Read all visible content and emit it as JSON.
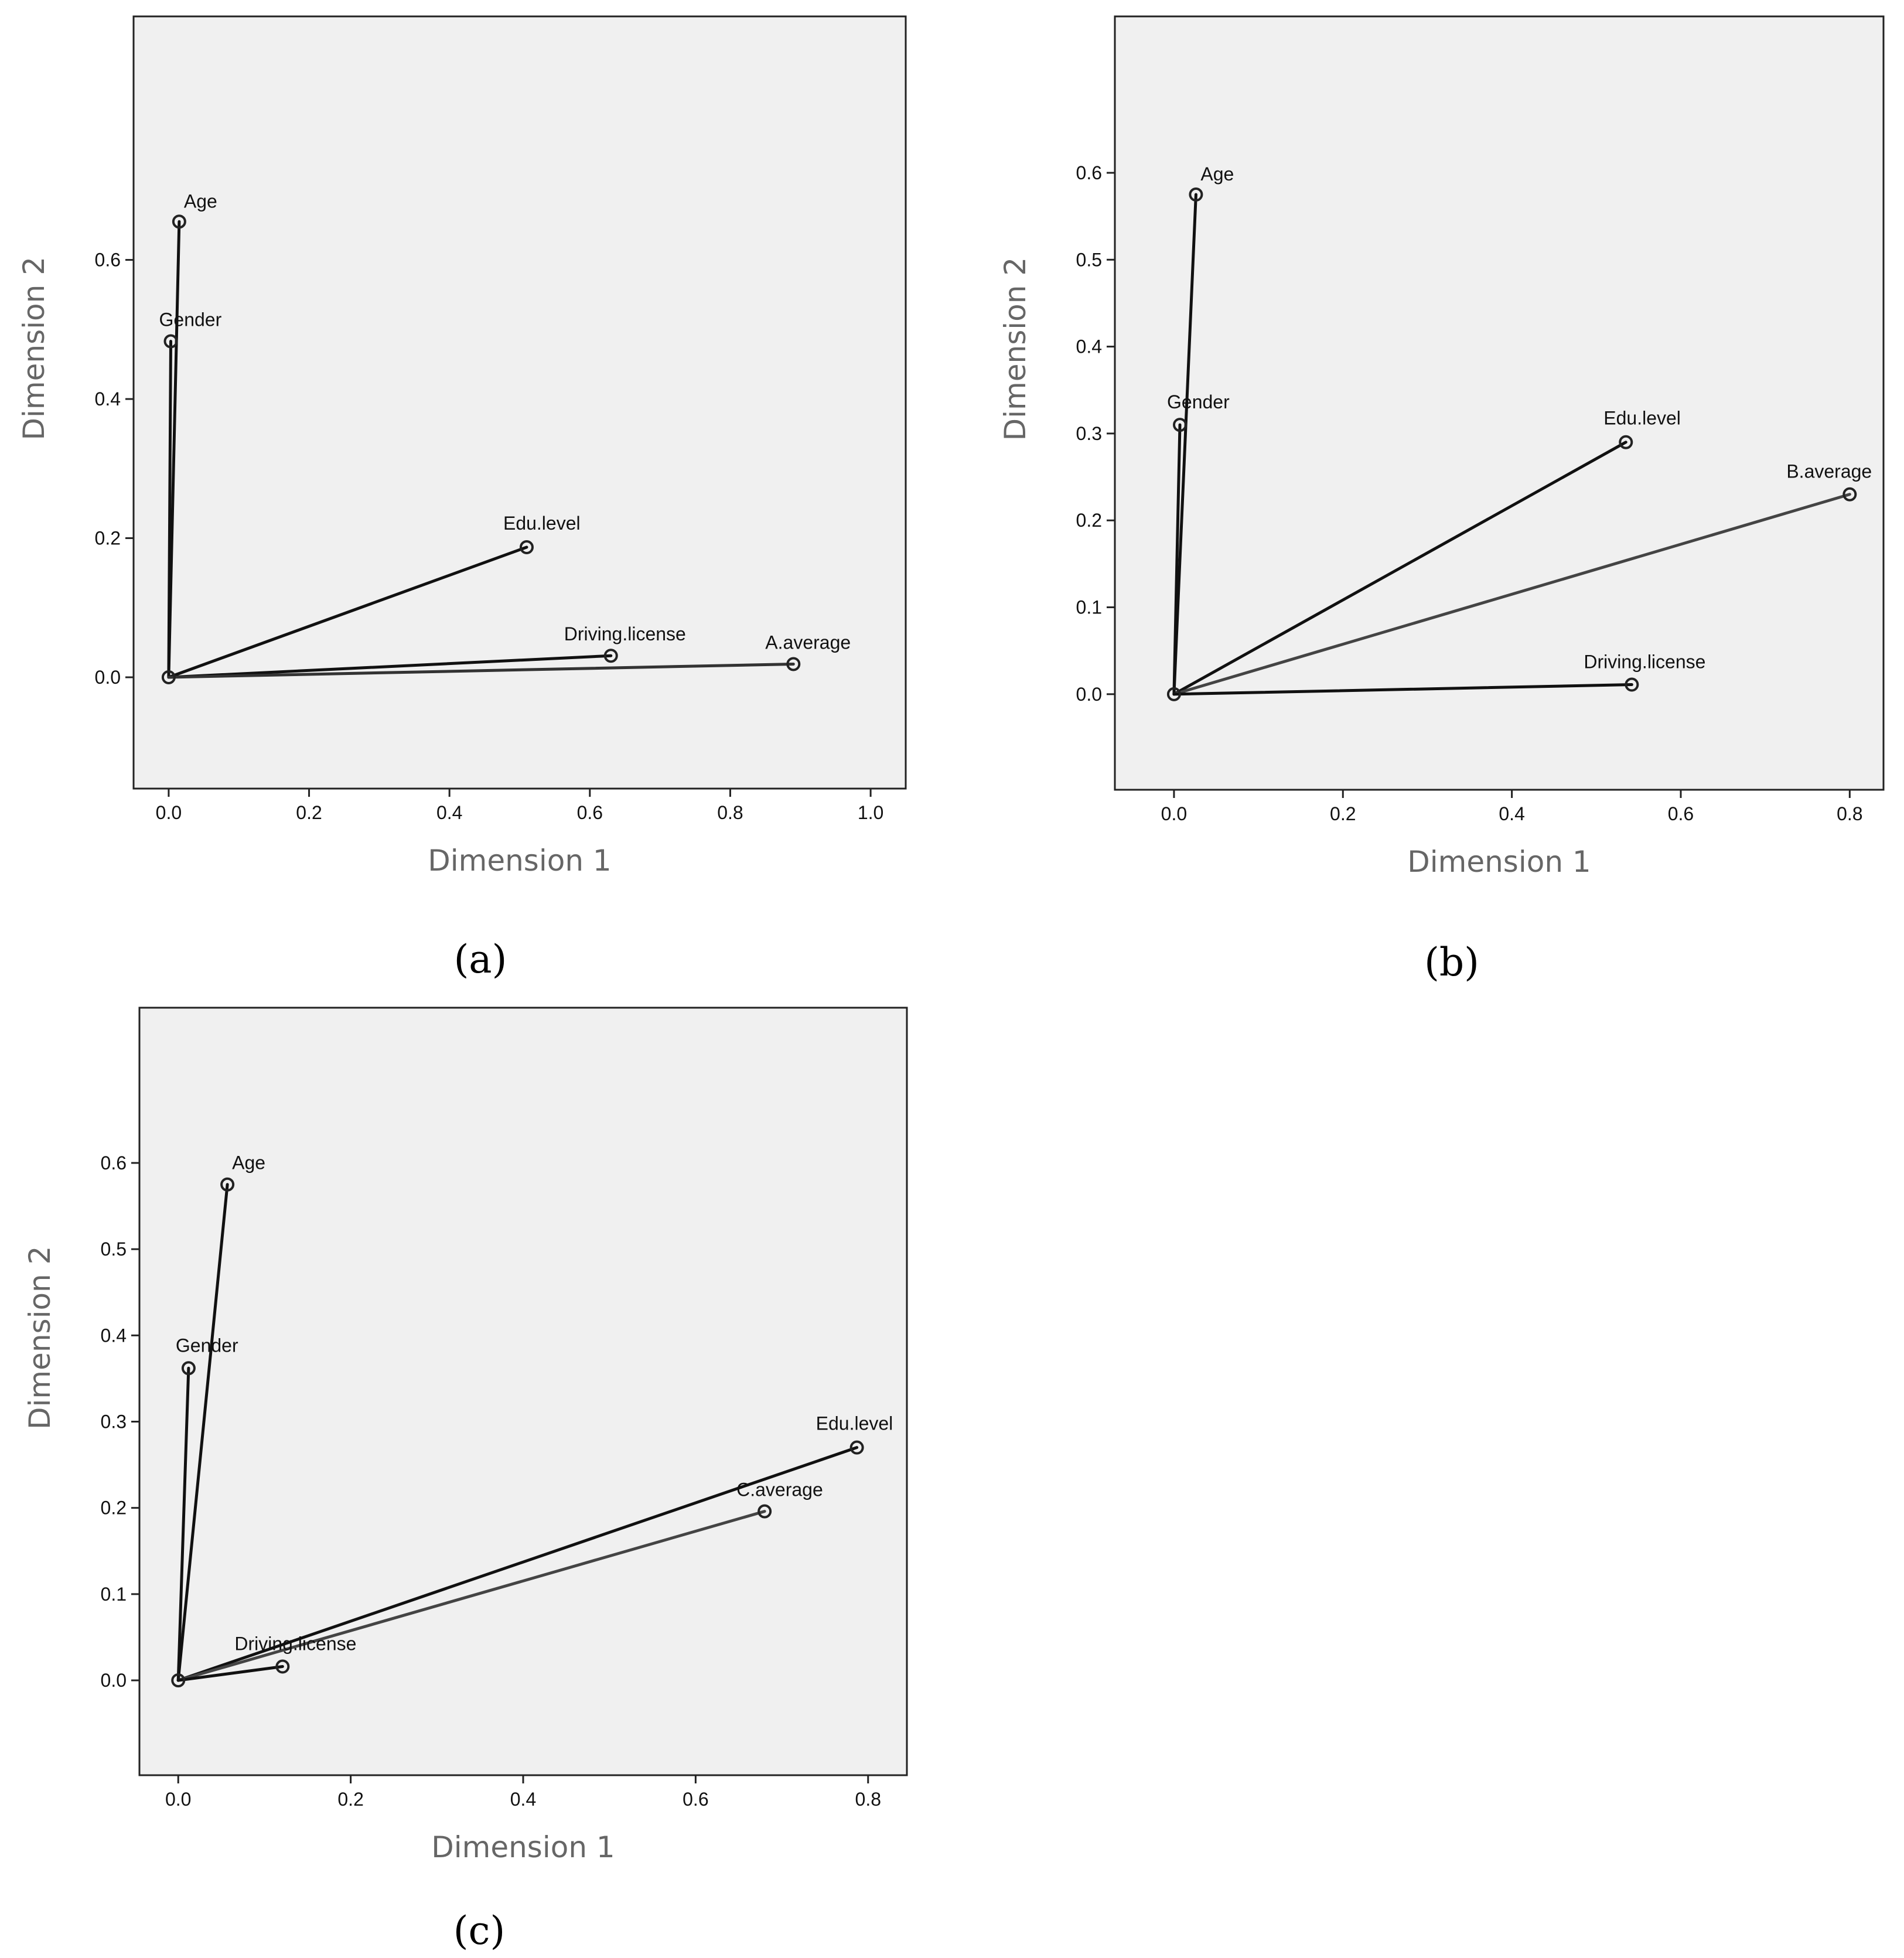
{
  "chart_data": [
    {
      "type": "scatter",
      "caption": "(a)",
      "xlabel": "Dimension 1",
      "ylabel": "Dimension 2",
      "xlim": [
        -0.05,
        1.05
      ],
      "ylim": [
        -0.16,
        0.95
      ],
      "xticks": [
        "0.0",
        "0.2",
        "0.4",
        "0.6",
        "0.8",
        "1.0"
      ],
      "yticks": [
        "0.0",
        "0.2",
        "0.4",
        "0.6"
      ],
      "grid": false,
      "legend": "none",
      "origin": [
        0,
        0
      ],
      "points": [
        {
          "label": "Age",
          "x": 0.015,
          "y": 0.655
        },
        {
          "label": "Gender",
          "x": 0.003,
          "y": 0.483
        },
        {
          "label": "Edu.level",
          "x": 0.51,
          "y": 0.187
        },
        {
          "label": "Driving.license",
          "x": 0.63,
          "y": 0.031
        },
        {
          "label": "A.average",
          "x": 0.89,
          "y": 0.019
        }
      ]
    },
    {
      "type": "scatter",
      "caption": "(b)",
      "xlabel": "Dimension 1",
      "ylabel": "Dimension 2",
      "xlim": [
        -0.07,
        0.84
      ],
      "ylim": [
        -0.11,
        0.78
      ],
      "xticks": [
        "0.0",
        "0.2",
        "0.4",
        "0.6",
        "0.8"
      ],
      "yticks": [
        "0.0",
        "0.1",
        "0.2",
        "0.3",
        "0.4",
        "0.5",
        "0.6"
      ],
      "grid": false,
      "legend": "none",
      "origin": [
        0,
        0
      ],
      "points": [
        {
          "label": "Age",
          "x": 0.026,
          "y": 0.575
        },
        {
          "label": "Gender",
          "x": 0.007,
          "y": 0.31
        },
        {
          "label": "Edu.level",
          "x": 0.535,
          "y": 0.29
        },
        {
          "label": "B.average",
          "x": 0.8,
          "y": 0.23
        },
        {
          "label": "Driving.license",
          "x": 0.542,
          "y": 0.011
        }
      ]
    },
    {
      "type": "scatter",
      "caption": "(c)",
      "xlabel": "Dimension 1",
      "ylabel": "Dimension 2",
      "xlim": [
        -0.045,
        0.845
      ],
      "ylim": [
        -0.11,
        0.78
      ],
      "xticks": [
        "0.0",
        "0.2",
        "0.4",
        "0.6",
        "0.8"
      ],
      "yticks": [
        "0.0",
        "0.1",
        "0.2",
        "0.3",
        "0.4",
        "0.5",
        "0.6"
      ],
      "grid": false,
      "legend": "none",
      "origin": [
        0,
        0
      ],
      "points": [
        {
          "label": "Age",
          "x": 0.057,
          "y": 0.575
        },
        {
          "label": "Gender",
          "x": 0.012,
          "y": 0.362
        },
        {
          "label": "Edu.level",
          "x": 0.787,
          "y": 0.27
        },
        {
          "label": "C.average",
          "x": 0.68,
          "y": 0.196
        },
        {
          "label": "Driving.license",
          "x": 0.121,
          "y": 0.016
        }
      ]
    }
  ]
}
